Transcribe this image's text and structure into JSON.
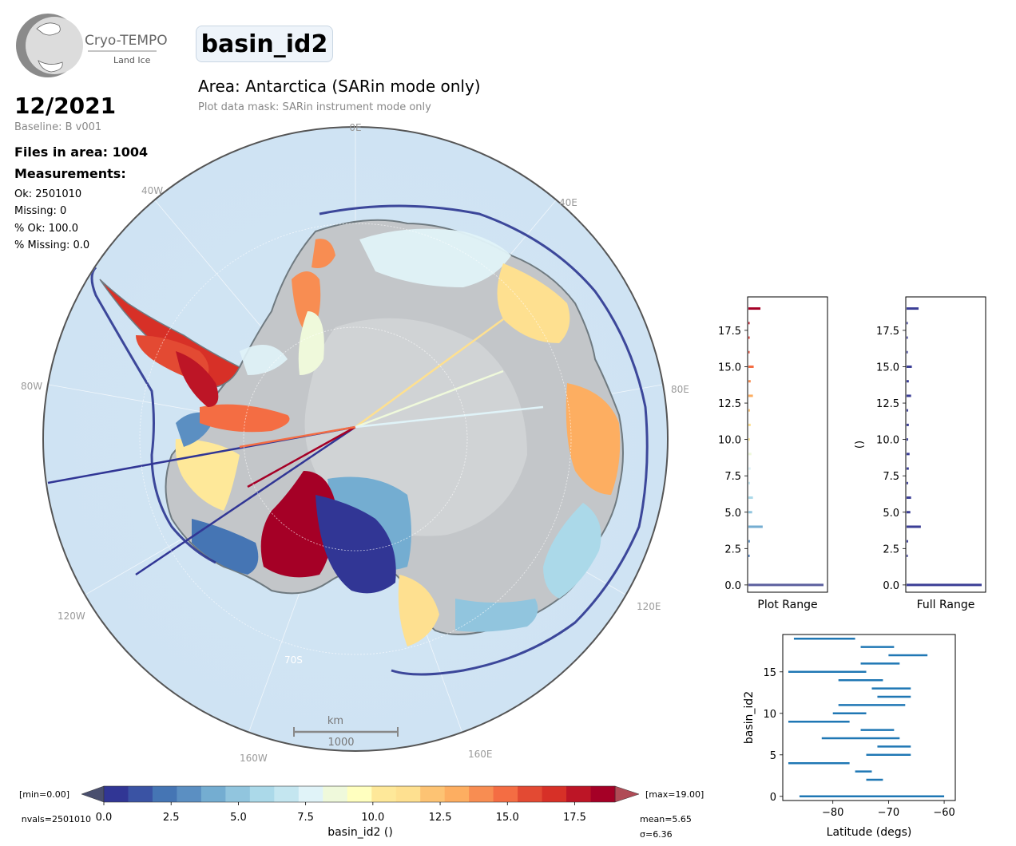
{
  "header": {
    "logo_name": "Cryo-TEMPO",
    "logo_sub": "Land Ice",
    "parameter": "basin_id2",
    "area_title": "Area: Antarctica (SARin mode only)",
    "mask_note": "Plot data mask: SARin instrument mode only"
  },
  "info": {
    "date": "12/2021",
    "baseline": "Baseline: B v001",
    "files": "Files in area: 1004",
    "measurements": "Measurements:",
    "ok": "Ok: 2501010",
    "missing": "Missing: 0",
    "pct_ok": "% Ok: 100.0",
    "pct_missing": "% Missing: 0.0"
  },
  "map": {
    "lon_labels": [
      "0E",
      "40E",
      "80E",
      "120E",
      "160E",
      "160W",
      "120W",
      "80W",
      "40W"
    ],
    "lat_label": "70S",
    "scale_unit": "km",
    "scale_value": "1000"
  },
  "colorbar": {
    "min_label": "[min=0.00]",
    "max_label": "[max=19.00]",
    "nvals_label": "nvals=2501010",
    "mean_label": "mean=5.65",
    "sigma_label": "σ=6.36",
    "label": "basin_id2 ()",
    "ticks": [
      "0.0",
      "2.5",
      "5.0",
      "7.5",
      "10.0",
      "12.5",
      "15.0",
      "17.5"
    ],
    "colors": [
      "#313695",
      "#3a53a4",
      "#4575b4",
      "#5b8fc2",
      "#74add1",
      "#91c5de",
      "#abd9e9",
      "#c4e6f0",
      "#e0f3f8",
      "#eff9db",
      "#ffffbf",
      "#fee899",
      "#fee090",
      "#fdc373",
      "#fdae61",
      "#f88d52",
      "#f46d43",
      "#e34a33",
      "#d73027",
      "#bd1526",
      "#a50026"
    ]
  },
  "chart_data": [
    {
      "type": "bar",
      "title": "",
      "xlabel": "Plot Range",
      "ylabel": "",
      "ylim": [
        -0.5,
        19.8
      ],
      "yticks": [
        "0.0",
        "2.5",
        "5.0",
        "7.5",
        "10.0",
        "12.5",
        "15.0",
        "17.5"
      ],
      "categories": [
        0,
        1,
        2,
        3,
        4,
        5,
        6,
        7,
        8,
        9,
        10,
        11,
        12,
        13,
        14,
        15,
        16,
        17,
        18,
        19
      ],
      "values": [
        1.0,
        0.0,
        0.01,
        0.02,
        0.19,
        0.05,
        0.06,
        0.02,
        0.03,
        0.04,
        0.02,
        0.03,
        0.02,
        0.06,
        0.03,
        0.07,
        0.01,
        0.01,
        0.01,
        0.16
      ]
    },
    {
      "type": "bar",
      "title": "",
      "xlabel": "Full Range",
      "ylabel": "()",
      "ylim": [
        -0.5,
        19.8
      ],
      "yticks": [
        "0.0",
        "2.5",
        "5.0",
        "7.5",
        "10.0",
        "12.5",
        "15.0",
        "17.5"
      ],
      "categories": [
        0,
        1,
        2,
        3,
        4,
        5,
        6,
        7,
        8,
        9,
        10,
        11,
        12,
        13,
        14,
        15,
        16,
        17,
        18,
        19
      ],
      "values": [
        1.0,
        0.0,
        0.01,
        0.02,
        0.19,
        0.05,
        0.06,
        0.02,
        0.03,
        0.04,
        0.02,
        0.03,
        0.02,
        0.06,
        0.03,
        0.07,
        0.01,
        0.01,
        0.01,
        0.16
      ]
    },
    {
      "type": "range",
      "title": "",
      "xlabel": "Latitude (degs)",
      "ylabel": "basin_id2",
      "xlim": [
        -89,
        -58
      ],
      "ylim": [
        -0.5,
        19.5
      ],
      "xticks": [
        "−80",
        "−70",
        "−60"
      ],
      "yticks": [
        "0",
        "5",
        "10",
        "15"
      ],
      "series": [
        {
          "basin": 0,
          "lat_min": -86,
          "lat_max": -60
        },
        {
          "basin": 2,
          "lat_min": -74,
          "lat_max": -71
        },
        {
          "basin": 3,
          "lat_min": -76,
          "lat_max": -73
        },
        {
          "basin": 4,
          "lat_min": -88,
          "lat_max": -77
        },
        {
          "basin": 5,
          "lat_min": -74,
          "lat_max": -66
        },
        {
          "basin": 6,
          "lat_min": -72,
          "lat_max": -66
        },
        {
          "basin": 7,
          "lat_min": -82,
          "lat_max": -68
        },
        {
          "basin": 8,
          "lat_min": -75,
          "lat_max": -69
        },
        {
          "basin": 9,
          "lat_min": -88,
          "lat_max": -77
        },
        {
          "basin": 10,
          "lat_min": -80,
          "lat_max": -74
        },
        {
          "basin": 11,
          "lat_min": -79,
          "lat_max": -67
        },
        {
          "basin": 12,
          "lat_min": -72,
          "lat_max": -66
        },
        {
          "basin": 13,
          "lat_min": -73,
          "lat_max": -66
        },
        {
          "basin": 14,
          "lat_min": -79,
          "lat_max": -71
        },
        {
          "basin": 15,
          "lat_min": -88,
          "lat_max": -74
        },
        {
          "basin": 16,
          "lat_min": -75,
          "lat_max": -68
        },
        {
          "basin": 17,
          "lat_min": -70,
          "lat_max": -63
        },
        {
          "basin": 18,
          "lat_min": -75,
          "lat_max": -69
        },
        {
          "basin": 19,
          "lat_min": -87,
          "lat_max": -76
        }
      ]
    }
  ]
}
